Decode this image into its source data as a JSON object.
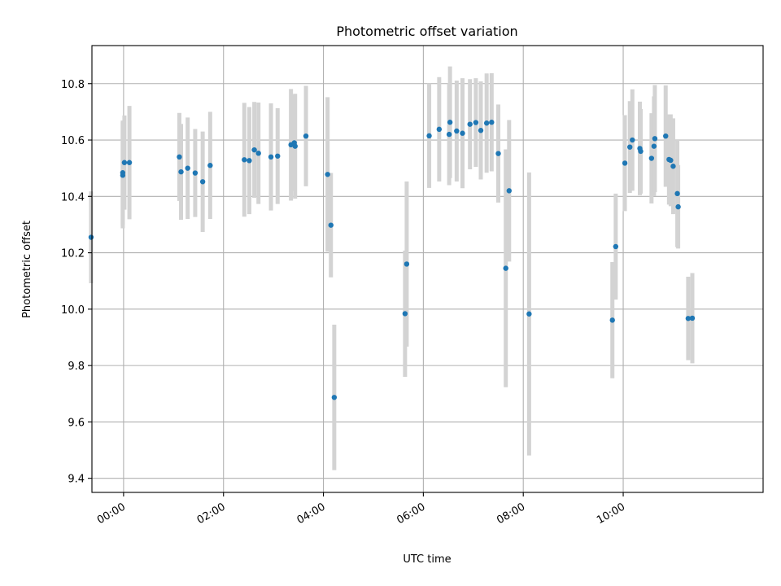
{
  "colors": {
    "point": "#1f77b4",
    "error_bar": "#d3d3d3",
    "grid": "#b0b0b0"
  },
  "chart_data": {
    "type": "scatter",
    "title": "Photometric offset variation",
    "xlabel": "UTC time",
    "ylabel": "Photometric offset",
    "x_is_time": true,
    "xlim": [
      "-00:38",
      "12:48"
    ],
    "ylim": [
      9.35,
      10.935
    ],
    "x_ticks": [
      "00:00",
      "02:00",
      "04:00",
      "06:00",
      "08:00",
      "10:00"
    ],
    "y_ticks": [
      "9.4",
      "9.6",
      "9.8",
      "10.0",
      "10.2",
      "10.4",
      "10.6",
      "10.8"
    ],
    "grid": true,
    "x_tick_rotation": 30,
    "series": [
      {
        "points": [
          {
            "t": "-00:39",
            "y": 10.255,
            "err": 0.163
          },
          {
            "t": "-00:01",
            "y": 10.475,
            "err": 0.188
          },
          {
            "t": "-00:01",
            "y": 10.484,
            "err": 0.185
          },
          {
            "t": "00:01",
            "y": 10.52,
            "err": 0.167
          },
          {
            "t": "00:07",
            "y": 10.52,
            "err": 0.201
          },
          {
            "t": "01:07",
            "y": 10.54,
            "err": 0.156
          },
          {
            "t": "01:09",
            "y": 10.487,
            "err": 0.17
          },
          {
            "t": "01:17",
            "y": 10.5,
            "err": 0.18
          },
          {
            "t": "01:26",
            "y": 10.483,
            "err": 0.156
          },
          {
            "t": "01:35",
            "y": 10.452,
            "err": 0.178
          },
          {
            "t": "01:44",
            "y": 10.51,
            "err": 0.19
          },
          {
            "t": "02:25",
            "y": 10.53,
            "err": 0.202
          },
          {
            "t": "02:31",
            "y": 10.527,
            "err": 0.19
          },
          {
            "t": "02:37",
            "y": 10.565,
            "err": 0.17
          },
          {
            "t": "02:42",
            "y": 10.553,
            "err": 0.18
          },
          {
            "t": "02:57",
            "y": 10.54,
            "err": 0.19
          },
          {
            "t": "03:05",
            "y": 10.543,
            "err": 0.17
          },
          {
            "t": "03:21",
            "y": 10.583,
            "err": 0.198
          },
          {
            "t": "03:25",
            "y": 10.59,
            "err": 0.171
          },
          {
            "t": "03:26",
            "y": 10.578,
            "err": 0.186
          },
          {
            "t": "03:39",
            "y": 10.614,
            "err": 0.178
          },
          {
            "t": "04:05",
            "y": 10.478,
            "err": 0.274
          },
          {
            "t": "04:09",
            "y": 10.298,
            "err": 0.185
          },
          {
            "t": "04:13",
            "y": 9.687,
            "err": 0.258
          },
          {
            "t": "05:38",
            "y": 9.984,
            "err": 0.224
          },
          {
            "t": "05:40",
            "y": 10.16,
            "err": 0.293
          },
          {
            "t": "06:07",
            "y": 10.615,
            "err": 0.185
          },
          {
            "t": "06:19",
            "y": 10.638,
            "err": 0.185
          },
          {
            "t": "06:31",
            "y": 10.62,
            "err": 0.18
          },
          {
            "t": "06:32",
            "y": 10.663,
            "err": 0.198
          },
          {
            "t": "06:40",
            "y": 10.632,
            "err": 0.179
          },
          {
            "t": "06:47",
            "y": 10.624,
            "err": 0.195
          },
          {
            "t": "06:56",
            "y": 10.656,
            "err": 0.16
          },
          {
            "t": "07:03",
            "y": 10.662,
            "err": 0.157
          },
          {
            "t": "07:09",
            "y": 10.634,
            "err": 0.174
          },
          {
            "t": "07:16",
            "y": 10.66,
            "err": 0.176
          },
          {
            "t": "07:22",
            "y": 10.663,
            "err": 0.174
          },
          {
            "t": "07:30",
            "y": 10.552,
            "err": 0.174
          },
          {
            "t": "07:39",
            "y": 10.145,
            "err": 0.422
          },
          {
            "t": "07:43",
            "y": 10.42,
            "err": 0.251
          },
          {
            "t": "08:07",
            "y": 9.983,
            "err": 0.502
          },
          {
            "t": "09:47",
            "y": 9.961,
            "err": 0.206
          },
          {
            "t": "09:51",
            "y": 10.222,
            "err": 0.188
          },
          {
            "t": "10:02",
            "y": 10.518,
            "err": 0.17
          },
          {
            "t": "10:08",
            "y": 10.575,
            "err": 0.163
          },
          {
            "t": "10:11",
            "y": 10.6,
            "err": 0.18
          },
          {
            "t": "10:20",
            "y": 10.57,
            "err": 0.166
          },
          {
            "t": "10:21",
            "y": 10.56,
            "err": 0.15
          },
          {
            "t": "10:34",
            "y": 10.535,
            "err": 0.16
          },
          {
            "t": "10:37",
            "y": 10.578,
            "err": 0.177
          },
          {
            "t": "10:38",
            "y": 10.605,
            "err": 0.19
          },
          {
            "t": "10:51",
            "y": 10.614,
            "err": 0.18
          },
          {
            "t": "10:55",
            "y": 10.531,
            "err": 0.16
          },
          {
            "t": "10:57",
            "y": 10.528,
            "err": 0.163
          },
          {
            "t": "11:00",
            "y": 10.507,
            "err": 0.17
          },
          {
            "t": "11:05",
            "y": 10.41,
            "err": 0.19
          },
          {
            "t": "11:06",
            "y": 10.363,
            "err": 0.148
          },
          {
            "t": "11:18",
            "y": 9.967,
            "err": 0.148
          },
          {
            "t": "11:23",
            "y": 9.968,
            "err": 0.16
          }
        ]
      }
    ]
  }
}
